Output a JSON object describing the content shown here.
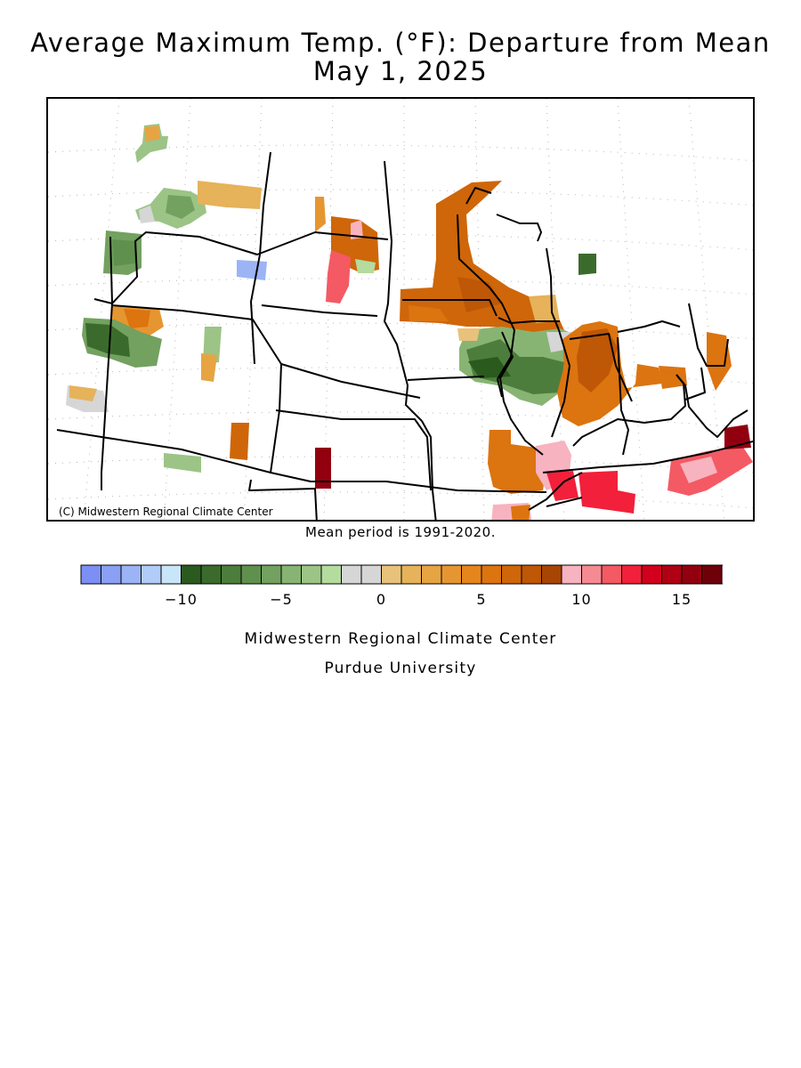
{
  "title_line1": "Average Maximum Temp. (°F): Departure from Mean",
  "title_line2": "May 1, 2025",
  "map": {
    "copyright": "(C) Midwestern Regional Climate Center",
    "region": "Midwest and Great Plains, United States"
  },
  "mean_period": "Mean period is 1991-2020.",
  "legend": {
    "colors": [
      "#7b8ff5",
      "#8aa0f5",
      "#9cb4f5",
      "#b2ccf8",
      "#c9e5f8",
      "#2a5a1e",
      "#3b6b2c",
      "#4d7d3c",
      "#60904e",
      "#73a160",
      "#88b473",
      "#9cc486",
      "#b3dc9e",
      "#d6d6d6",
      "#d6d6d6",
      "#e8c27a",
      "#e6b25a",
      "#e6a443",
      "#e69630",
      "#e5851c",
      "#dc7410",
      "#cf6609",
      "#be5706",
      "#a64504",
      "#f7b3bf",
      "#f68a93",
      "#f45a64",
      "#f2203a",
      "#d2001c",
      "#b00014",
      "#920010",
      "#6e000a",
      "#f5a6e6"
    ],
    "ticks": [
      {
        "label": "−10",
        "value": -10
      },
      {
        "label": "−5",
        "value": -5
      },
      {
        "label": "0",
        "value": 0
      },
      {
        "label": "5",
        "value": 5
      },
      {
        "label": "10",
        "value": 10
      },
      {
        "label": "15",
        "value": 15
      }
    ]
  },
  "credit_line1": "Midwestern Regional Climate Center",
  "credit_line2": "Purdue University"
}
